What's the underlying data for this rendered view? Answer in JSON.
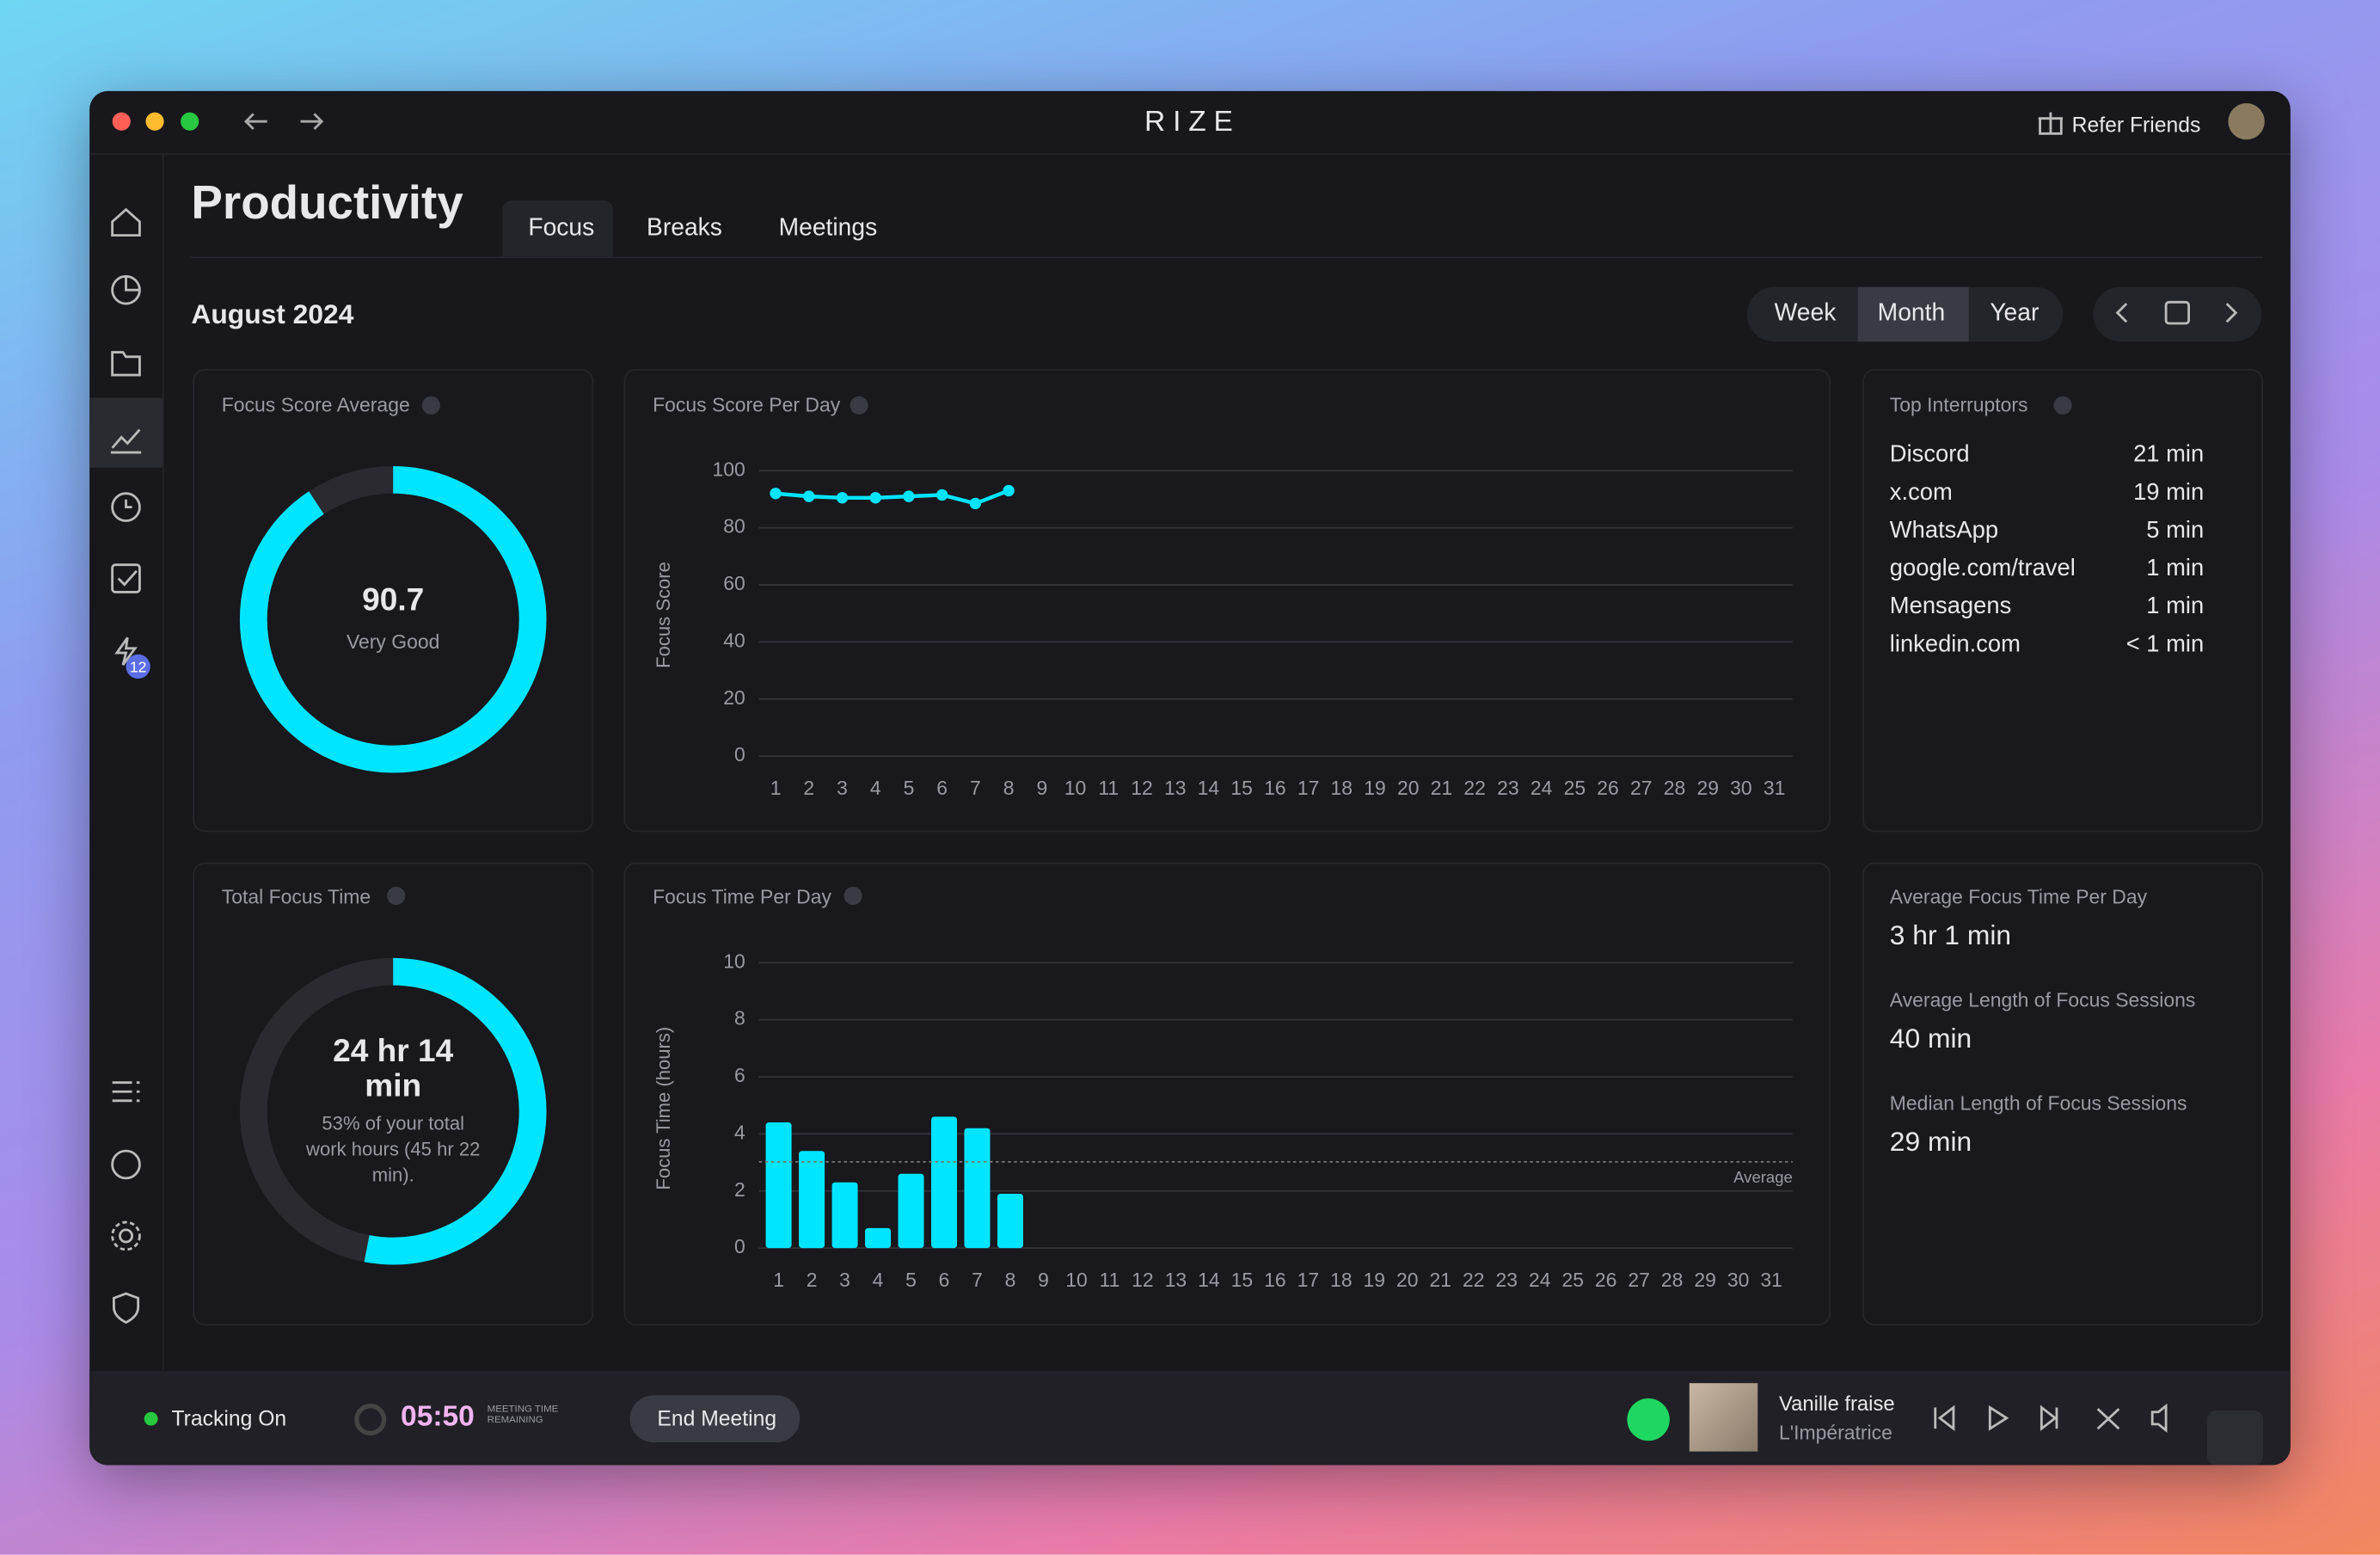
{
  "window": {
    "title": "RIZE",
    "refer": "Refer Friends"
  },
  "sidebar": {
    "badge": "12"
  },
  "page": {
    "title": "Productivity",
    "tabs": [
      "Focus",
      "Breaks",
      "Meetings"
    ],
    "period": "August 2024",
    "ranges": [
      "Week",
      "Month",
      "Year"
    ]
  },
  "focus_score": {
    "title": "Focus Score Average",
    "value": 90.7,
    "label": "Very Good"
  },
  "total_focus": {
    "title": "Total Focus Time",
    "value": "24 hr 14 min",
    "percent": 53,
    "note": "53% of your total work hours (45 hr 22 min)."
  },
  "chart_data": [
    {
      "type": "line",
      "title": "Focus Score Per Day",
      "y_label": "Focus Score",
      "color": "#00e5ff",
      "categories": [
        1,
        2,
        3,
        4,
        5,
        6,
        7,
        8,
        9,
        10,
        11,
        12,
        13,
        14,
        15,
        16,
        17,
        18,
        19,
        20,
        21,
        22,
        23,
        24,
        25,
        26,
        27,
        28,
        29,
        30,
        31
      ],
      "values": [
        92,
        91,
        90.5,
        90.5,
        91,
        91.5,
        88.5,
        93,
        null,
        null,
        null,
        null,
        null,
        null,
        null,
        null,
        null,
        null,
        null,
        null,
        null,
        null,
        null,
        null,
        null,
        null,
        null,
        null,
        null,
        null,
        null
      ],
      "ylim": [
        0,
        100
      ],
      "yticks": [
        0,
        20,
        40,
        60,
        80,
        100
      ],
      "grid": true
    },
    {
      "type": "bar",
      "title": "Focus Time Per Day",
      "y_label": "Focus Time (hours)",
      "color": "#00e5ff",
      "categories": [
        1,
        2,
        3,
        4,
        5,
        6,
        7,
        8,
        9,
        10,
        11,
        12,
        13,
        14,
        15,
        16,
        17,
        18,
        19,
        20,
        21,
        22,
        23,
        24,
        25,
        26,
        27,
        28,
        29,
        30,
        31
      ],
      "values": [
        4.4,
        3.4,
        2.3,
        0.7,
        2.6,
        4.6,
        4.2,
        1.9,
        null,
        null,
        null,
        null,
        null,
        null,
        null,
        null,
        null,
        null,
        null,
        null,
        null,
        null,
        null,
        null,
        null,
        null,
        null,
        null,
        null,
        null,
        null
      ],
      "ylim": [
        0,
        10
      ],
      "yticks": [
        0,
        2,
        4,
        6,
        8,
        10
      ],
      "grid": true,
      "average": {
        "value": 3.02,
        "label": "Average"
      }
    }
  ],
  "interruptors": {
    "title": "Top Interruptors",
    "rows": [
      [
        "Discord",
        "21 min"
      ],
      [
        "x.com",
        "19 min"
      ],
      [
        "WhatsApp",
        "5 min"
      ],
      [
        "google.com/travel",
        "1 min"
      ],
      [
        "Mensagens",
        "1 min"
      ],
      [
        "linkedin.com",
        "< 1 min"
      ]
    ]
  },
  "stats": [
    {
      "title": "Average Focus Time Per Day",
      "value": "3 hr 1 min"
    },
    {
      "title": "Average Length of Focus Sessions",
      "value": "40 min"
    },
    {
      "title": "Median Length of Focus Sessions",
      "value": "29 min"
    }
  ],
  "footer": {
    "tracking": "Tracking On",
    "timer": "05:50",
    "timer_label": "MEETING TIME REMAINING",
    "end": "End Meeting",
    "song": "Vanille fraise",
    "artist": "L'Impératrice"
  }
}
